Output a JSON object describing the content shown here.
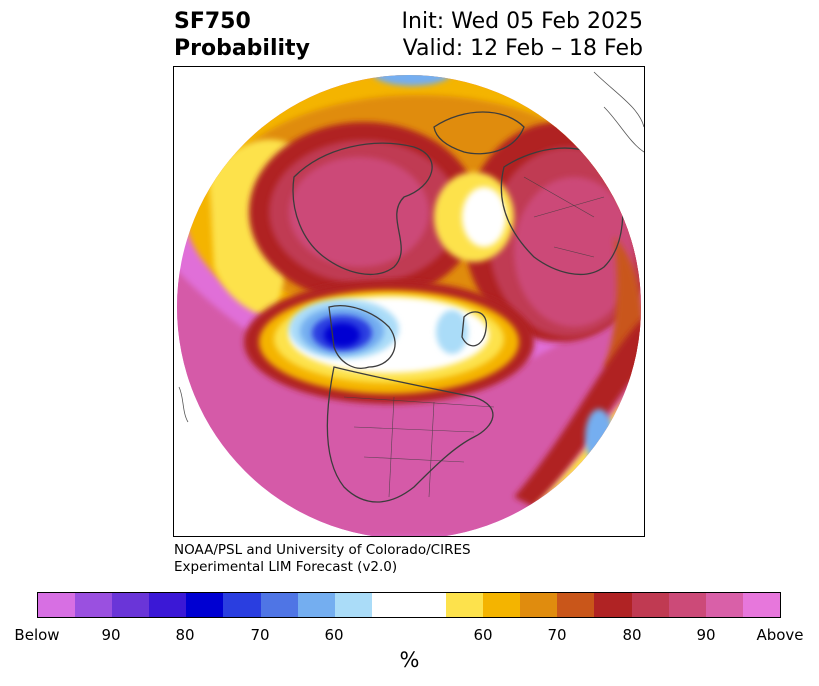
{
  "header": {
    "title_line1": "SF750",
    "title_line2": "Probability",
    "init_text": "Init: Wed 05 Feb 2025",
    "valid_text": "Valid: 12 Feb – 18 Feb"
  },
  "credit": {
    "line1": "NOAA/PSL and University of Colorado/CIRES",
    "line2": "Experimental LIM Forecast (v2.0)"
  },
  "colorbar": {
    "colors": [
      "#d76fe3",
      "#9a50e0",
      "#6a35d8",
      "#3b18d6",
      "#0000d2",
      "#2a3ee0",
      "#4f75e5",
      "#74aef0",
      "#aadcf8",
      "#ffffff",
      "#ffffff",
      "#fde24c",
      "#f4b400",
      "#e08c0e",
      "#c9561a",
      "#b02324",
      "#c03a52",
      "#cc4a78",
      "#d960a8",
      "#e777dc"
    ],
    "tick_labels": [
      "Below",
      "90",
      "80",
      "70",
      "60",
      "60",
      "70",
      "80",
      "90",
      "Above"
    ],
    "unit_label": "%"
  }
}
